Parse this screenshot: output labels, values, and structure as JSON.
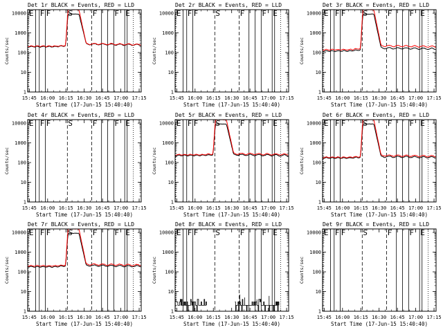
{
  "figure": {
    "xlabel": "Start Time (17-Jun-15 15:40:40)",
    "ylabel": "Counts/sec",
    "x_ticks": [
      "15:45",
      "16:00",
      "16:15",
      "16:30",
      "16:45",
      "17:00",
      "17:15"
    ],
    "y_ticks": [
      "1",
      "10",
      "100",
      "1000",
      "10000"
    ],
    "xlim": [
      3.0,
      96.0
    ],
    "ylim": [
      1,
      15000
    ],
    "colors": {
      "events": "#000000",
      "lld": "#ff0000"
    }
  },
  "markers": [
    {
      "label": "E",
      "t": 3.5,
      "line": "dotted"
    },
    {
      "label": "F",
      "t": 12.5,
      "line": "solid"
    },
    {
      "label": "F",
      "t": 17.5,
      "line": "solid"
    },
    {
      "label": "S",
      "t": 35.5,
      "line": "dashed"
    },
    {
      "label": "F",
      "t": 55.5,
      "line": "dashed"
    },
    {
      "label": "F",
      "t": 73.5,
      "line": "solid"
    },
    {
      "label": "E",
      "t": 82.5,
      "line": "solid"
    }
  ],
  "extra_lines": [
    {
      "t": 9.5,
      "line": "solid"
    },
    {
      "t": 63.5,
      "line": "solid"
    },
    {
      "t": 68.5,
      "line": "solid"
    },
    {
      "t": 84.5,
      "line": "solid"
    },
    {
      "t": 89.5,
      "line": "dotted"
    }
  ],
  "chart_data": [
    {
      "type": "line",
      "title": "Det 1r BLACK = Events, RED = LLD",
      "kind": "flare",
      "series": [
        {
          "name": "Events",
          "baseline": [
            200,
            270
          ],
          "peak": 9000
        },
        {
          "name": "LLD",
          "baseline": [
            210,
            280
          ],
          "peak": 15000
        }
      ]
    },
    {
      "type": "line",
      "title": "Det 2r BLACK = Events, RED = LLD",
      "kind": "empty",
      "series": []
    },
    {
      "type": "line",
      "title": "Det 3r BLACK = Events, RED = LLD",
      "kind": "flare",
      "series": [
        {
          "name": "Events",
          "baseline": [
            120,
            170
          ],
          "peak": 9000
        },
        {
          "name": "LLD",
          "baseline": [
            140,
            220
          ],
          "peak": 15000
        }
      ]
    },
    {
      "type": "line",
      "title": "Det 4r BLACK = Events, RED = LLD",
      "kind": "empty",
      "series": []
    },
    {
      "type": "line",
      "title": "Det 5r BLACK = Events, RED = LLD",
      "kind": "flare",
      "series": [
        {
          "name": "Events",
          "baseline": [
            230,
            250
          ],
          "peak": 9000
        },
        {
          "name": "LLD",
          "baseline": [
            250,
            280
          ],
          "peak": 15000
        }
      ]
    },
    {
      "type": "line",
      "title": "Det 6r BLACK = Events, RED = LLD",
      "kind": "flare",
      "series": [
        {
          "name": "Events",
          "baseline": [
            170,
            200
          ],
          "peak": 9000
        },
        {
          "name": "LLD",
          "baseline": [
            185,
            230
          ],
          "peak": 15000
        }
      ]
    },
    {
      "type": "line",
      "title": "Det 7r BLACK = Events, RED = LLD",
      "kind": "flare",
      "series": [
        {
          "name": "Events",
          "baseline": [
            180,
            210
          ],
          "peak": 9000
        },
        {
          "name": "LLD",
          "baseline": [
            200,
            240
          ],
          "peak": 15000
        }
      ]
    },
    {
      "type": "line",
      "title": "Det 8r BLACK = Events, RED = LLD",
      "kind": "noise",
      "series": [
        {
          "name": "Events",
          "baseline": [
            2,
            2
          ],
          "peak": 7
        }
      ]
    },
    {
      "type": "line",
      "title": "Det 9r BLACK = Events, RED = LLD",
      "kind": "empty",
      "series": []
    }
  ]
}
